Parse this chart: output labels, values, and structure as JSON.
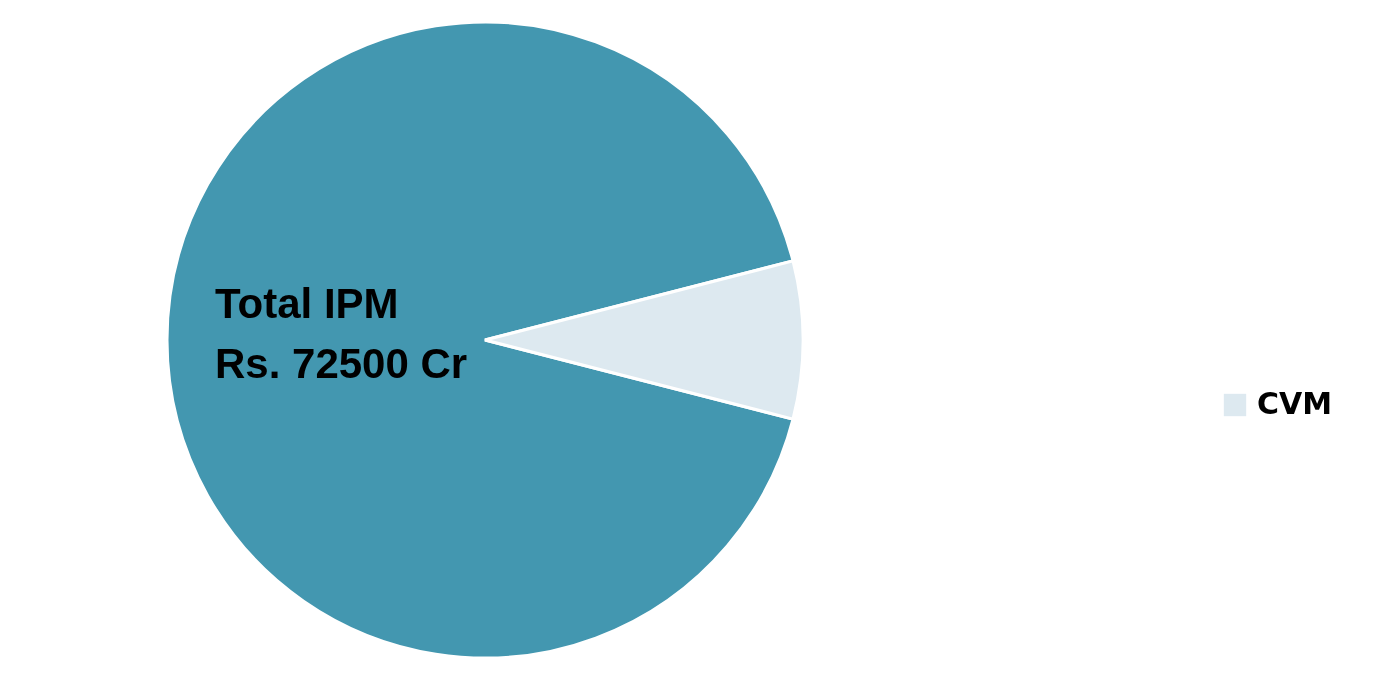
{
  "chart_data": {
    "type": "pie",
    "categories": [
      "Total IPM",
      "CVM"
    ],
    "values": [
      92,
      8
    ],
    "colors": [
      "#4397b0",
      "#dde9f0"
    ],
    "annotations": [
      "Rs. 72500 Cr"
    ],
    "legend": "right"
  }
}
